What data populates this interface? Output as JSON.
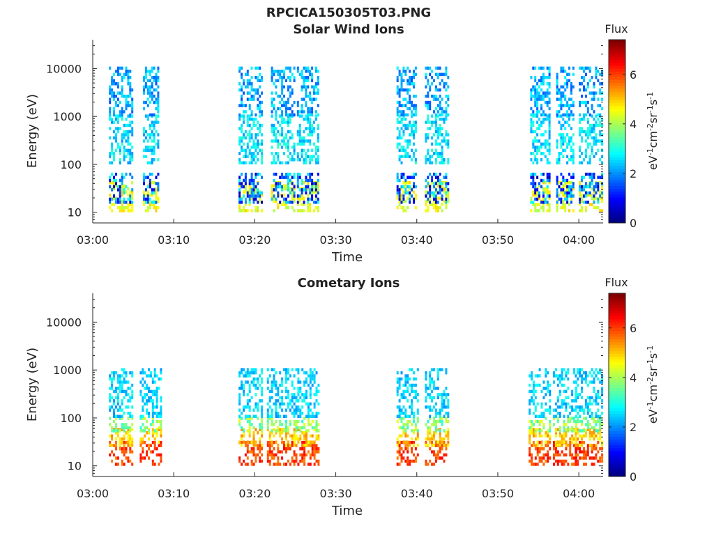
{
  "figure": {
    "file_title": "RPCICA150305T03.PNG"
  },
  "panels": [
    {
      "title": "Solar Wind Ions",
      "xlabel": "Time",
      "ylabel": "Energy (eV)",
      "cbar_title": "Flux",
      "cbar_label": "eV-1cm-2sr-1s-1"
    },
    {
      "title": "Cometary Ions",
      "xlabel": "Time",
      "ylabel": "Energy (eV)",
      "cbar_title": "Flux",
      "cbar_label": "eV-1cm-2sr-1s-1"
    }
  ],
  "chart_data": [
    {
      "type": "heatmap",
      "title": "Solar Wind Ions",
      "xlabel": "Time",
      "ylabel": "Energy (eV)",
      "x_range_minutes": [
        0,
        63
      ],
      "x_ticks": [
        {
          "minutes": 0,
          "label": "03:00"
        },
        {
          "minutes": 10,
          "label": "03:10"
        },
        {
          "minutes": 20,
          "label": "03:20"
        },
        {
          "minutes": 30,
          "label": "03:30"
        },
        {
          "minutes": 40,
          "label": "03:40"
        },
        {
          "minutes": 50,
          "label": "03:50"
        },
        {
          "minutes": 60,
          "label": "04:00"
        }
      ],
      "y_scale": "log",
      "y_range": [
        6,
        40000
      ],
      "y_ticks": [
        {
          "value": 10,
          "label": "10"
        },
        {
          "value": 100,
          "label": "100"
        },
        {
          "value": 1000,
          "label": "1000"
        },
        {
          "value": 10000,
          "label": "10000"
        }
      ],
      "colorbar": {
        "title": "Flux",
        "unit": "eV-1cm-2sr-1s-1",
        "range": [
          0,
          7.4
        ],
        "ticks": [
          0,
          2,
          4,
          6
        ],
        "colormap": "jet"
      },
      "bursts": [
        {
          "start_min": 2.0,
          "end_min": 4.8
        },
        {
          "start_min": 6.2,
          "end_min": 8.0
        },
        {
          "start_min": 18.0,
          "end_min": 20.8
        },
        {
          "start_min": 22.0,
          "end_min": 24.8
        },
        {
          "start_min": 25.2,
          "end_min": 27.8
        },
        {
          "start_min": 37.5,
          "end_min": 40.0
        },
        {
          "start_min": 41.0,
          "end_min": 43.8
        },
        {
          "start_min": 54.0,
          "end_min": 56.4
        },
        {
          "start_min": 57.2,
          "end_min": 59.4
        },
        {
          "start_min": 60.0,
          "end_min": 62.8
        }
      ],
      "populations": [
        {
          "min_eV": 10,
          "max_eV": 40,
          "flux_min": 4.0,
          "flux_max": 5.0
        },
        {
          "min_eV": 15,
          "max_eV": 60,
          "flux_min": 0.3,
          "flux_max": 3.0
        },
        {
          "min_eV": 100,
          "max_eV": 1000,
          "flux_min": 2.0,
          "flux_max": 3.2
        },
        {
          "min_eV": 1000,
          "max_eV": 10000,
          "flux_min": 1.5,
          "flux_max": 2.8
        }
      ]
    },
    {
      "type": "heatmap",
      "title": "Cometary Ions",
      "xlabel": "Time",
      "ylabel": "Energy (eV)",
      "x_range_minutes": [
        0,
        63
      ],
      "x_ticks": [
        {
          "minutes": 0,
          "label": "03:00"
        },
        {
          "minutes": 10,
          "label": "03:10"
        },
        {
          "minutes": 20,
          "label": "03:20"
        },
        {
          "minutes": 30,
          "label": "03:30"
        },
        {
          "minutes": 40,
          "label": "03:40"
        },
        {
          "minutes": 50,
          "label": "03:50"
        },
        {
          "minutes": 60,
          "label": "04:00"
        }
      ],
      "y_scale": "log",
      "y_range": [
        6,
        40000
      ],
      "y_ticks": [
        {
          "value": 10,
          "label": "10"
        },
        {
          "value": 100,
          "label": "100"
        },
        {
          "value": 1000,
          "label": "1000"
        },
        {
          "value": 10000,
          "label": "10000"
        }
      ],
      "colorbar": {
        "title": "Flux",
        "unit": "eV-1cm-2sr-1s-1",
        "range": [
          0,
          7.4
        ],
        "ticks": [
          0,
          2,
          4,
          6
        ],
        "colormap": "jet"
      },
      "bursts": [
        {
          "start_min": 2.0,
          "end_min": 5.0
        },
        {
          "start_min": 5.8,
          "end_min": 8.5
        },
        {
          "start_min": 18.0,
          "end_min": 21.0
        },
        {
          "start_min": 21.5,
          "end_min": 24.8
        },
        {
          "start_min": 25.0,
          "end_min": 27.8
        },
        {
          "start_min": 37.5,
          "end_min": 40.2
        },
        {
          "start_min": 41.0,
          "end_min": 43.8
        },
        {
          "start_min": 53.8,
          "end_min": 56.5
        },
        {
          "start_min": 56.8,
          "end_min": 59.8
        },
        {
          "start_min": 59.5,
          "end_min": 62.8
        }
      ],
      "populations": [
        {
          "min_eV": 10,
          "max_eV": 30,
          "flux_min": 5.5,
          "flux_max": 6.5
        },
        {
          "min_eV": 25,
          "max_eV": 60,
          "flux_min": 4.5,
          "flux_max": 5.5
        },
        {
          "min_eV": 50,
          "max_eV": 100,
          "flux_min": 3.0,
          "flux_max": 4.5
        },
        {
          "min_eV": 100,
          "max_eV": 1000,
          "flux_min": 2.0,
          "flux_max": 3.0
        }
      ]
    }
  ]
}
